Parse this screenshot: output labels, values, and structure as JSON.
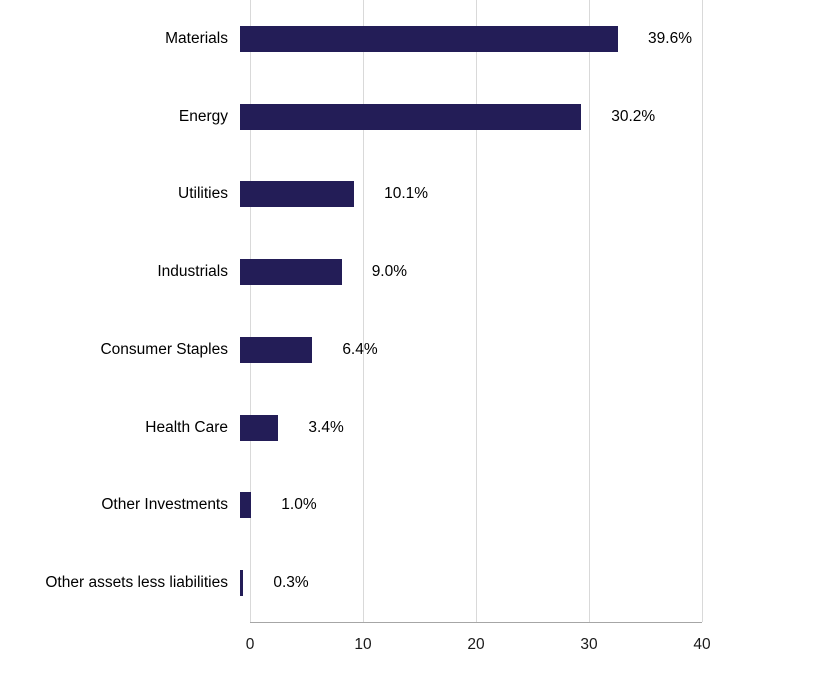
{
  "colors": {
    "bar": "#231d57",
    "gridline": "#d9d9d9",
    "axis_line": "#a6a6a6",
    "text": "#000000"
  },
  "chart_data": {
    "type": "bar",
    "orientation": "horizontal",
    "title": "",
    "xlabel": "",
    "ylabel": "",
    "categories": [
      "Materials",
      "Energy",
      "Utilities",
      "Industrials",
      "Consumer Staples",
      "Health Care",
      "Other Investments",
      "Other assets less liabilities"
    ],
    "values": [
      39.6,
      30.2,
      10.1,
      9.0,
      6.4,
      3.4,
      1.0,
      0.3
    ],
    "value_labels": [
      "39.6%",
      "30.2%",
      "10.1%",
      "9.0%",
      "6.4%",
      "3.4%",
      "1.0%",
      "0.3%"
    ],
    "xticks": [
      0,
      10,
      20,
      30,
      40
    ],
    "xtick_labels": [
      "0",
      "10",
      "20",
      "30",
      "40"
    ],
    "xlim": [
      0,
      40
    ],
    "grid": "vertical",
    "legend": "none"
  }
}
